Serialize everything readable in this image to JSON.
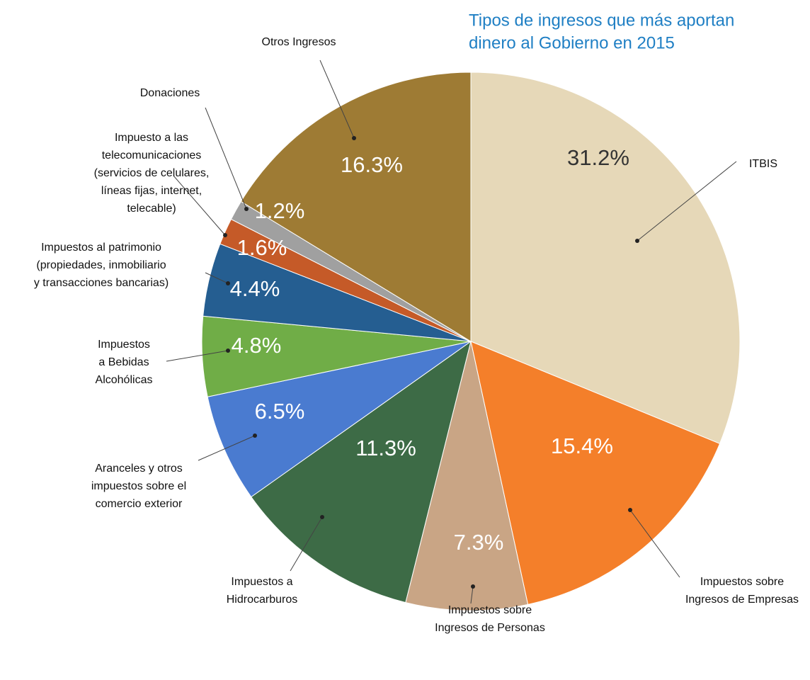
{
  "chart_data": {
    "type": "pie",
    "title": [
      "Tipos de ingresos que más aportan",
      "dinero al Gobierno en 2015"
    ],
    "categories": [
      [
        "ITBIS"
      ],
      [
        "Impuestos sobre",
        "Ingresos de Empresas"
      ],
      [
        "Impuestos sobre",
        "Ingresos de Personas"
      ],
      [
        "Impuestos a",
        "Hidrocarburos"
      ],
      [
        "Aranceles y otros",
        "impuestos sobre el",
        "comercio exterior"
      ],
      [
        "Impuestos",
        "a Bebidas",
        "Alcohólicas"
      ],
      [
        "Impuestos al patrimonio",
        "(propiedades, inmobiliario",
        "y transacciones bancarias)"
      ],
      [
        "Impuesto a las",
        "telecomunicaciones",
        "(servicios de celulares,",
        "líneas fijas, internet,",
        "telecable)"
      ],
      [
        "Donaciones"
      ],
      [
        "Otros Ingresos"
      ]
    ],
    "values": [
      31.2,
      15.4,
      7.3,
      11.3,
      6.5,
      4.8,
      4.4,
      1.6,
      1.2,
      16.3
    ],
    "value_labels": [
      "31.2%",
      "15.4%",
      "7.3%",
      "11.3%",
      "6.5%",
      "4.8%",
      "4.4%",
      "1.6%",
      "1.2%",
      "16.3%"
    ],
    "colors": [
      "#e6d8b8",
      "#f47f2a",
      "#c9a585",
      "#3d6b46",
      "#4a7bd0",
      "#70ad47",
      "#255e91",
      "#c55a28",
      "#a0a0a0",
      "#9e7b34"
    ]
  }
}
